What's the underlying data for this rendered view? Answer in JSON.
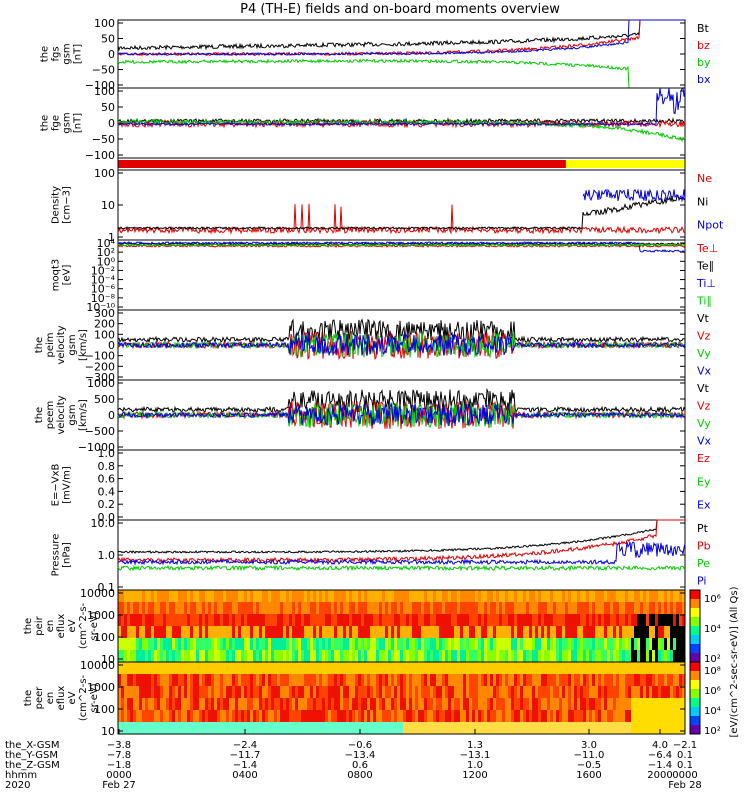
{
  "title": "P4 (TH-E) fields and on-board moments overview",
  "colors": {
    "black": "#000000",
    "red": "#e00000",
    "green": "#00cc00",
    "blue": "#0000dd",
    "yellow": "#ffff00"
  },
  "chart_data": [
    {
      "type": "line",
      "id": "fgs_gsm",
      "ylabel": [
        "the",
        "fgs",
        "gsm",
        "[nT]"
      ],
      "yticks": [
        "100",
        "50",
        "0",
        "−50",
        "−100"
      ],
      "ylim": [
        -100,
        100
      ],
      "legend": [
        {
          "label": "Bt",
          "color": "black"
        },
        {
          "label": "bz",
          "color": "red"
        },
        {
          "label": "by",
          "color": "green"
        },
        {
          "label": "bx",
          "color": "blue"
        }
      ]
    },
    {
      "type": "line",
      "id": "fge_gsm",
      "ylabel": [
        "the",
        "fge",
        "gsm",
        "[nT]"
      ],
      "yticks": [
        "100",
        "50",
        "0",
        "−50",
        "−100"
      ],
      "ylim": [
        -125,
        100
      ],
      "legend": []
    },
    {
      "type": "bar",
      "id": "mode_bar",
      "segments": [
        {
          "from": 0,
          "to": 0.79,
          "color": "red"
        },
        {
          "from": 0.79,
          "to": 1.0,
          "color": "yellow"
        }
      ]
    },
    {
      "type": "line",
      "id": "density",
      "ylabel": [
        "Density",
        "[cm−3]"
      ],
      "yticks": [
        "100",
        "10",
        "1"
      ],
      "ylim": [
        0.5,
        200
      ],
      "scale": "log",
      "legend": [
        {
          "label": "Ne",
          "color": "red"
        },
        {
          "label": "Ni",
          "color": "black"
        },
        {
          "label": "Npot",
          "color": "blue"
        }
      ]
    },
    {
      "type": "line",
      "id": "temperature",
      "ylabel": [
        "moqt3",
        "[eV]"
      ],
      "yticks": [
        "10⁴",
        "10²",
        "10⁰",
        "10⁻²",
        "10⁻⁴",
        "10⁻⁶",
        "10⁻⁸",
        "10⁻¹⁰"
      ],
      "scale": "log",
      "legend": [
        {
          "label": "Te⊥",
          "color": "red"
        },
        {
          "label": "Te∥",
          "color": "black"
        },
        {
          "label": "Ti⊥",
          "color": "blue"
        },
        {
          "label": "Ti∥",
          "color": "green"
        }
      ]
    },
    {
      "type": "line",
      "id": "peim_velocity",
      "ylabel": [
        "the",
        "peim",
        "velocity",
        "gsm",
        "[km/s]"
      ],
      "yticks": [
        "300",
        "200",
        "100",
        "0",
        "−100",
        "−200",
        "−300"
      ],
      "ylim": [
        -300,
        300
      ],
      "legend": [
        {
          "label": "Vt",
          "color": "black"
        },
        {
          "label": "Vz",
          "color": "red"
        },
        {
          "label": "Vy",
          "color": "green"
        },
        {
          "label": "Vx",
          "color": "blue"
        }
      ]
    },
    {
      "type": "line",
      "id": "peem_velocity",
      "ylabel": [
        "the",
        "peem",
        "velocity",
        "gsm",
        "[km/s]"
      ],
      "yticks": [
        "1000",
        "500",
        "0",
        "−500",
        "−1000"
      ],
      "ylim": [
        -1000,
        1000
      ],
      "legend": [
        {
          "label": "Vt",
          "color": "black"
        },
        {
          "label": "Vz",
          "color": "red"
        },
        {
          "label": "Vy",
          "color": "green"
        },
        {
          "label": "Vx",
          "color": "blue"
        }
      ]
    },
    {
      "type": "line",
      "id": "e_field",
      "ylabel": [
        "E=−VxB",
        "[mV/m]"
      ],
      "yticks": [
        "1.0",
        "0.8",
        "0.6",
        "0.4",
        "0.2",
        "0.0"
      ],
      "ylim": [
        0,
        1
      ],
      "legend": [
        {
          "label": "Ez",
          "color": "red"
        },
        {
          "label": "Ey",
          "color": "green"
        },
        {
          "label": "Ex",
          "color": "blue"
        }
      ]
    },
    {
      "type": "line",
      "id": "pressure",
      "ylabel": [
        "Pressure",
        "[nPa]"
      ],
      "yticks": [
        "10.0",
        "1.0",
        "0.1"
      ],
      "ylim": [
        0.02,
        40
      ],
      "scale": "log",
      "legend": [
        {
          "label": "Pt",
          "color": "black"
        },
        {
          "label": "Pb",
          "color": "red"
        },
        {
          "label": "Pe",
          "color": "green"
        },
        {
          "label": "Pi",
          "color": "blue"
        }
      ]
    },
    {
      "type": "heatmap",
      "id": "peir_spec",
      "ylabel": [
        "the",
        "peir",
        "en",
        "eflux",
        "eV",
        "(cm^2-s-",
        "sr-eV)"
      ],
      "yticks": [
        "10000",
        "1000",
        "100",
        "10"
      ]
    },
    {
      "type": "heatmap",
      "id": "peer_spec",
      "ylabel": [
        "the",
        "peer",
        "en",
        "eflux",
        "eV",
        "(cm^2-s-",
        "sr-eV)"
      ],
      "yticks": [
        "10000",
        "1000",
        "100",
        "10"
      ]
    }
  ],
  "colorbar": {
    "label": "[eV/(cm^2-sec-sr-eV)] (All Qs)",
    "ticks_top": [
      "10⁶",
      "10⁴",
      "10²"
    ],
    "ticks_bottom": [
      "10⁸",
      "10⁶",
      "10⁴",
      "10²"
    ]
  },
  "xaxis": {
    "rows": [
      {
        "label": "the_X-GSM",
        "values": [
          "−3.8",
          "−2.4",
          "−0.6",
          "1.3",
          "3.0",
          "4.0",
          "−2.1"
        ]
      },
      {
        "label": "the_Y-GSM",
        "values": [
          "−7.8",
          "−11.7",
          "−13.4",
          "−13.1",
          "−11.0",
          "−6.4",
          "0.1"
        ]
      },
      {
        "label": "the_Z-GSM",
        "values": [
          "−1.8",
          "−1.4",
          "0.6",
          "1.0",
          "−0.5",
          "−1.4",
          "0.1"
        ]
      },
      {
        "label": "hhmm",
        "values": [
          "0000",
          "0400",
          "0800",
          "1200",
          "1600",
          "2000",
          "0000"
        ]
      },
      {
        "label": "2020",
        "values": [
          "Feb 27",
          "",
          "",
          "",
          "",
          "",
          "Feb 28"
        ]
      }
    ]
  }
}
